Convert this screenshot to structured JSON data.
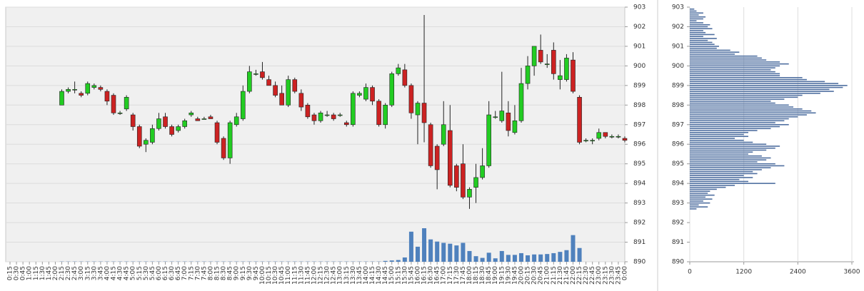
{
  "chart_data": [
    {
      "type": "candlestick",
      "categories": [
        "0:15",
        "0:30",
        "0:45",
        "1:00",
        "1:15",
        "1:30",
        "1:45",
        "2:00",
        "2:15",
        "2:30",
        "2:45",
        "3:00",
        "3:15",
        "3:30",
        "3:45",
        "4:00",
        "4:15",
        "4:30",
        "4:45",
        "5:00",
        "5:15",
        "5:30",
        "5:45",
        "6:00",
        "6:15",
        "6:30",
        "6:45",
        "7:00",
        "7:15",
        "7:30",
        "7:45",
        "8:00",
        "8:15",
        "8:30",
        "8:45",
        "9:00",
        "9:15",
        "9:30",
        "9:45",
        "10:00",
        "10:15",
        "10:30",
        "10:45",
        "11:00",
        "11:15",
        "11:30",
        "11:45",
        "12:00",
        "12:15",
        "12:30",
        "12:45",
        "13:00",
        "13:15",
        "13:30",
        "13:45",
        "14:00",
        "14:15",
        "14:30",
        "14:45",
        "15:00",
        "15:15",
        "15:30",
        "15:45",
        "16:00",
        "16:15",
        "16:30",
        "16:45",
        "17:00",
        "17:15",
        "17:30",
        "17:45",
        "18:00",
        "18:15",
        "18:30",
        "18:45",
        "19:00",
        "19:15",
        "19:30",
        "19:45",
        "20:00",
        "20:15",
        "20:30",
        "20:45",
        "21:00",
        "21:15",
        "21:30",
        "21:45",
        "22:00",
        "22:15",
        "22:30",
        "22:45",
        "23:00",
        "23:15",
        "23:30",
        "23:45",
        "0:00"
      ],
      "open": [
        null,
        null,
        null,
        null,
        null,
        null,
        null,
        null,
        898.0,
        898.7,
        898.8,
        898.6,
        898.6,
        898.9,
        898.9,
        898.7,
        898.5,
        897.6,
        897.8,
        897.5,
        896.9,
        896.0,
        896.1,
        896.8,
        897.4,
        896.9,
        896.7,
        896.9,
        897.5,
        897.3,
        897.3,
        897.4,
        897.1,
        896.3,
        895.3,
        897.0,
        897.3,
        898.7,
        899.6,
        899.7,
        899.3,
        899.0,
        898.6,
        898.0,
        899.3,
        898.6,
        898.0,
        897.5,
        897.2,
        897.5,
        897.5,
        897.5,
        897.1,
        897.0,
        898.5,
        898.3,
        898.9,
        898.2,
        897.0,
        898.0,
        899.6,
        899.8,
        899.0,
        897.5,
        898.1,
        897.0,
        895.9,
        896.0,
        896.7,
        894.9,
        895.0,
        893.3,
        893.8,
        894.3,
        894.9,
        897.4,
        897.2,
        897.6,
        896.6,
        897.2,
        899.1,
        900.0,
        900.8,
        900.1,
        900.8,
        899.3,
        899.3,
        900.3,
        898.4,
        896.2,
        896.2,
        896.3,
        896.6,
        896.4,
        896.4,
        896.3
      ],
      "high": [
        null,
        null,
        null,
        null,
        null,
        null,
        null,
        null,
        898.8,
        898.9,
        899.2,
        898.7,
        899.2,
        899.1,
        899.0,
        898.8,
        898.6,
        897.7,
        898.5,
        897.6,
        897.0,
        896.3,
        897.0,
        897.6,
        897.6,
        897.0,
        897.0,
        897.3,
        897.7,
        897.4,
        897.4,
        897.5,
        897.2,
        896.4,
        897.2,
        897.6,
        899.0,
        900.0,
        899.8,
        900.2,
        899.5,
        899.2,
        899.0,
        899.5,
        899.4,
        898.8,
        898.1,
        897.6,
        897.7,
        897.7,
        897.6,
        897.6,
        897.2,
        898.7,
        898.7,
        899.1,
        899.0,
        898.3,
        898.1,
        899.7,
        900.1,
        900.1,
        899.1,
        898.2,
        902.6,
        897.1,
        896.0,
        898.2,
        898.0,
        895.0,
        896.0,
        893.8,
        895.0,
        895.8,
        898.2,
        897.7,
        899.7,
        898.2,
        898.0,
        899.9,
        900.5,
        901.0,
        901.6,
        900.6,
        901.2,
        900.3,
        900.6,
        900.7,
        898.5,
        896.3,
        896.3,
        896.8,
        896.6,
        896.5,
        896.5,
        896.4
      ],
      "low": [
        null,
        null,
        null,
        null,
        null,
        null,
        null,
        null,
        898.0,
        898.6,
        898.6,
        898.4,
        898.5,
        898.8,
        898.7,
        898.0,
        897.5,
        897.5,
        897.7,
        896.7,
        895.8,
        895.6,
        896.0,
        896.7,
        896.8,
        896.4,
        896.6,
        896.8,
        897.4,
        897.2,
        897.3,
        897.3,
        896.0,
        895.2,
        895.0,
        896.9,
        897.2,
        898.6,
        899.5,
        899.3,
        899.0,
        898.4,
        898.0,
        897.9,
        898.6,
        897.7,
        897.3,
        897.0,
        897.1,
        897.4,
        897.2,
        897.4,
        896.9,
        896.9,
        898.4,
        898.2,
        898.0,
        896.9,
        896.8,
        897.9,
        899.5,
        898.9,
        897.3,
        896.0,
        896.1,
        894.8,
        893.7,
        895.9,
        893.8,
        893.6,
        893.2,
        892.7,
        893.0,
        894.2,
        894.8,
        897.3,
        897.1,
        896.4,
        896.5,
        897.1,
        898.8,
        899.5,
        900.1,
        899.9,
        899.3,
        898.8,
        899.2,
        898.6,
        896.0,
        896.1,
        896.0,
        896.2,
        896.3,
        896.3,
        896.3,
        896.1
      ],
      "close": [
        null,
        null,
        null,
        null,
        null,
        null,
        null,
        null,
        898.7,
        898.8,
        898.8,
        898.5,
        899.1,
        899.0,
        898.8,
        898.2,
        897.6,
        897.6,
        898.4,
        896.9,
        895.9,
        896.2,
        896.8,
        897.3,
        896.9,
        896.5,
        896.9,
        897.2,
        897.6,
        897.2,
        897.3,
        897.3,
        896.1,
        895.3,
        897.1,
        897.4,
        898.7,
        899.7,
        899.6,
        899.4,
        899.0,
        898.5,
        898.0,
        899.3,
        898.7,
        897.9,
        897.4,
        897.2,
        897.6,
        897.5,
        897.3,
        897.5,
        897.0,
        898.6,
        898.6,
        898.9,
        898.2,
        897.0,
        898.0,
        899.6,
        899.9,
        899.0,
        897.6,
        898.1,
        897.1,
        894.9,
        894.7,
        897.0,
        893.9,
        893.8,
        893.3,
        893.7,
        894.3,
        894.9,
        897.5,
        897.4,
        897.7,
        896.7,
        897.2,
        899.1,
        900.0,
        901.0,
        900.2,
        900.1,
        899.6,
        899.5,
        900.4,
        898.7,
        896.1,
        896.2,
        896.2,
        896.6,
        896.4,
        896.4,
        896.4,
        896.2
      ],
      "volume": [
        null,
        null,
        null,
        null,
        null,
        null,
        null,
        null,
        5,
        5,
        5,
        5,
        5,
        5,
        5,
        5,
        5,
        5,
        5,
        5,
        5,
        5,
        5,
        5,
        5,
        5,
        5,
        5,
        5,
        5,
        5,
        5,
        5,
        5,
        5,
        5,
        5,
        5,
        5,
        5,
        5,
        5,
        5,
        5,
        5,
        5,
        5,
        5,
        5,
        5,
        5,
        5,
        5,
        5,
        5,
        5,
        5,
        5,
        20,
        30,
        40,
        100,
        700,
        350,
        780,
        520,
        470,
        440,
        420,
        380,
        440,
        250,
        130,
        90,
        210,
        80,
        250,
        160,
        160,
        200,
        150,
        170,
        170,
        180,
        200,
        230,
        270,
        620,
        320,
        0,
        0,
        0,
        0,
        0,
        0,
        0
      ],
      "up_color": "#22cc22",
      "down_color": "#cc2222",
      "volume_color": "#4f81bd",
      "ylim": [
        890,
        903
      ],
      "yticks": [
        890,
        891,
        892,
        893,
        894,
        895,
        896,
        897,
        898,
        899,
        900,
        901,
        902,
        903
      ],
      "grid": true
    },
    {
      "type": "bar",
      "orientation": "horizontal",
      "color": "#4f6fa0",
      "y": [
        902.9,
        902.8,
        902.7,
        902.6,
        902.5,
        902.4,
        902.3,
        902.2,
        902.1,
        902.0,
        901.9,
        901.8,
        901.7,
        901.6,
        901.5,
        901.4,
        901.3,
        901.2,
        901.1,
        901.0,
        900.9,
        900.8,
        900.7,
        900.6,
        900.5,
        900.4,
        900.3,
        900.2,
        900.1,
        900.0,
        899.9,
        899.8,
        899.7,
        899.6,
        899.5,
        899.4,
        899.3,
        899.2,
        899.1,
        899.0,
        898.9,
        898.8,
        898.7,
        898.6,
        898.5,
        898.4,
        898.3,
        898.2,
        898.1,
        898.0,
        897.9,
        897.8,
        897.7,
        897.6,
        897.5,
        897.4,
        897.3,
        897.2,
        897.1,
        897.0,
        896.9,
        896.8,
        896.7,
        896.6,
        896.5,
        896.4,
        896.3,
        896.2,
        896.1,
        896.0,
        895.9,
        895.8,
        895.7,
        895.6,
        895.5,
        895.4,
        895.3,
        895.2,
        895.1,
        895.0,
        894.9,
        894.8,
        894.7,
        894.6,
        894.5,
        894.4,
        894.3,
        894.2,
        894.1,
        894.0,
        893.9,
        893.8,
        893.7,
        893.6,
        893.5,
        893.4,
        893.3,
        893.2,
        893.1,
        893.0,
        892.9,
        892.8,
        892.7
      ],
      "values": [
        100,
        150,
        300,
        200,
        350,
        300,
        150,
        300,
        450,
        400,
        500,
        300,
        350,
        550,
        300,
        600,
        400,
        500,
        550,
        650,
        600,
        900,
        1100,
        1000,
        1500,
        1600,
        1700,
        2000,
        2200,
        2000,
        1900,
        1800,
        1900,
        2000,
        2000,
        2500,
        2600,
        3000,
        3300,
        3500,
        3400,
        3100,
        3200,
        2900,
        2500,
        2400,
        2100,
        1800,
        1900,
        2200,
        2300,
        2500,
        2700,
        2800,
        2600,
        2400,
        2200,
        2100,
        1900,
        2200,
        2000,
        1800,
        1500,
        1300,
        1200,
        1300,
        1000,
        1200,
        1400,
        1700,
        2000,
        1900,
        1700,
        1400,
        1300,
        1600,
        1800,
        1700,
        1500,
        1900,
        2100,
        1800,
        1600,
        1400,
        1500,
        1200,
        1400,
        1100,
        1300,
        1900,
        1000,
        800,
        600,
        450,
        400,
        550,
        350,
        500,
        300,
        450,
        200,
        400,
        150
      ],
      "xlim": [
        0,
        3600
      ],
      "xticks": [
        0,
        1200,
        2400,
        3600
      ],
      "ylim": [
        890,
        903
      ],
      "yticks": [
        890,
        891,
        892,
        893,
        894,
        895,
        896,
        897,
        898,
        899,
        900,
        901,
        902,
        903
      ],
      "grid": true
    }
  ]
}
